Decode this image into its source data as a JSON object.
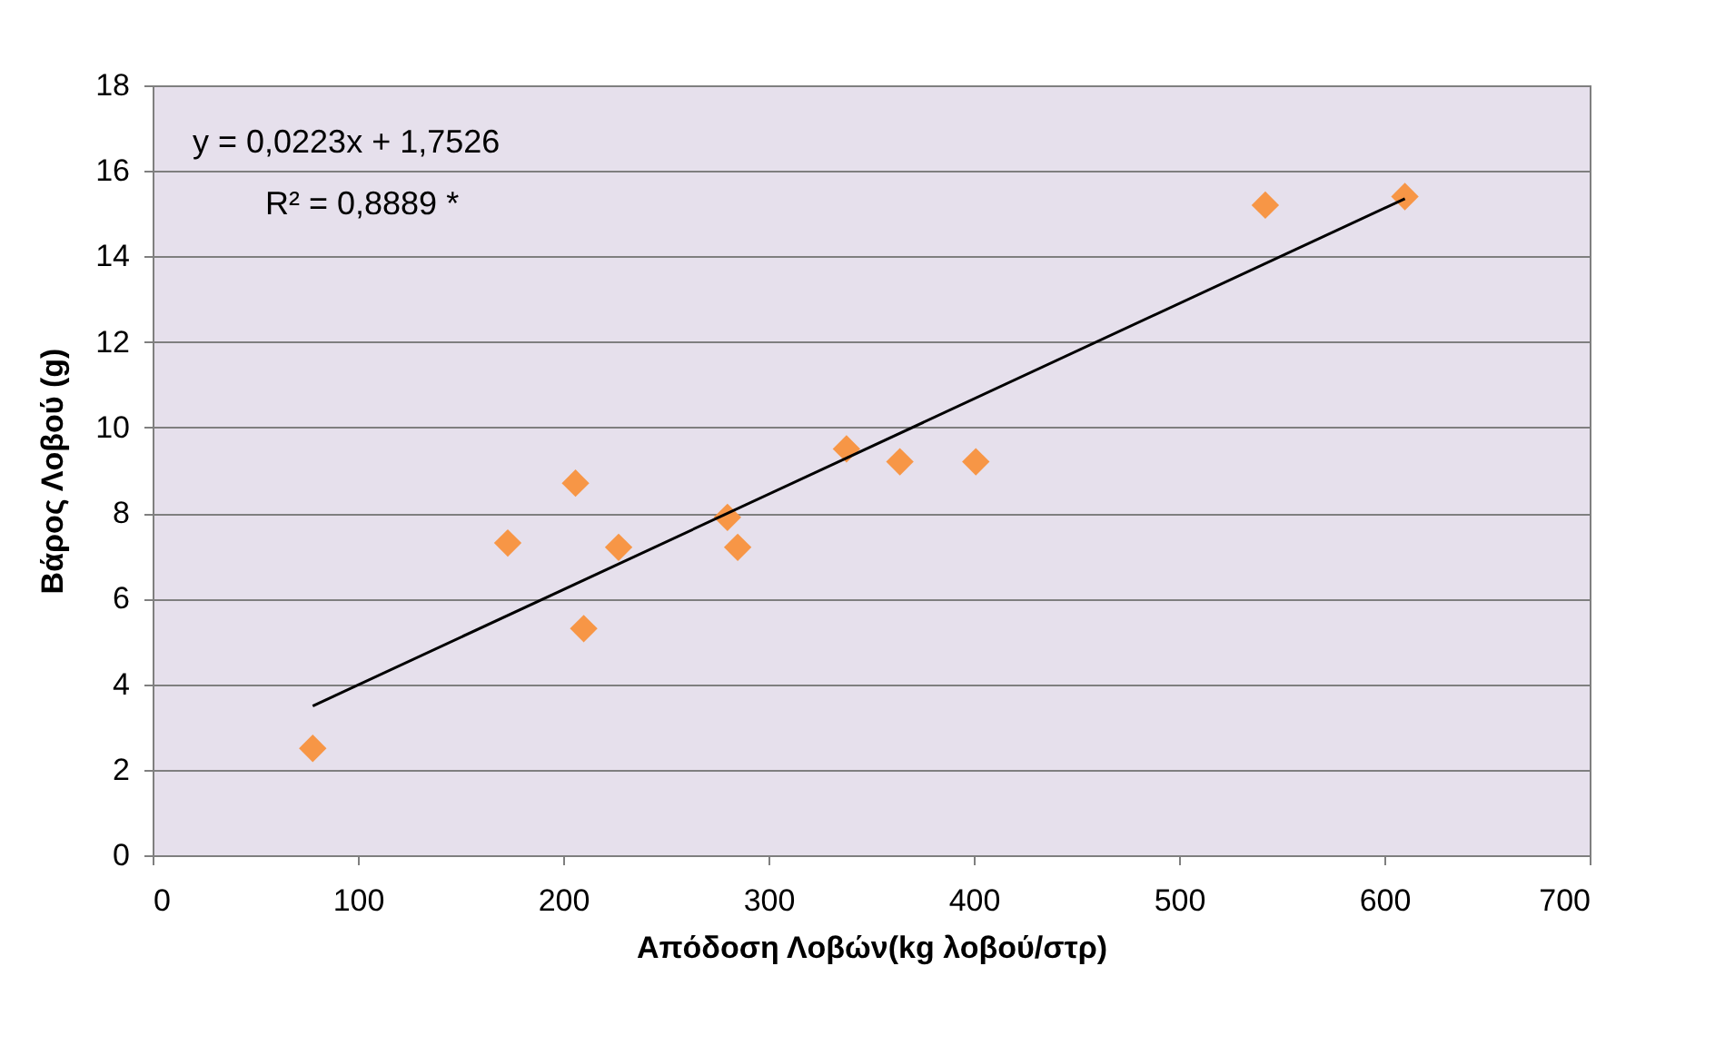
{
  "chart_data": {
    "type": "scatter",
    "xlabel": "Απόδοση Λοβών(kg λοβού/στρ)",
    "ylabel": "Βάρος Λοβού (g)",
    "xlim": [
      0,
      700
    ],
    "xticks": [
      0,
      100,
      200,
      300,
      400,
      500,
      600,
      700
    ],
    "ylim": [
      0,
      18
    ],
    "yticks": [
      0,
      2,
      4,
      6,
      8,
      10,
      12,
      14,
      16,
      18
    ],
    "grid": "y",
    "annotations": [
      "y = 0,0223x + 1,7526",
      "R² = 0,8889 *"
    ],
    "series": [
      {
        "color": "#f79646",
        "marker": "diamond",
        "x": [
          78,
          173,
          206,
          210,
          227,
          280,
          285,
          338,
          364,
          401,
          542,
          610
        ],
        "values": [
          2.5,
          7.3,
          8.7,
          5.3,
          7.2,
          7.9,
          7.2,
          9.5,
          9.2,
          9.2,
          15.2,
          15.4
        ]
      },
      {
        "type": "line",
        "marker": "none",
        "color": "#000000",
        "x": [
          78,
          610
        ],
        "values": [
          3.49,
          15.35
        ]
      }
    ]
  }
}
